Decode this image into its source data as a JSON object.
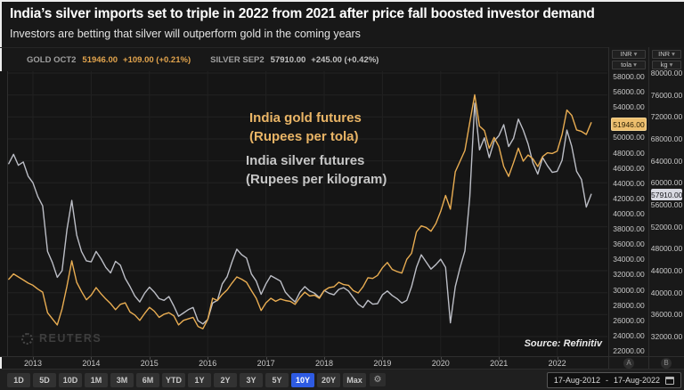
{
  "header": {
    "title": "India’s silver imports set to triple in 2022 from 2021 after price fall boosted investor demand",
    "subtitle": "Investors are betting that silver will outperform gold in the coming years"
  },
  "quotebar": {
    "gold": {
      "symbol": "GOLD OCT2",
      "last": "51946.00",
      "change": "+109.00 (+0.21%)"
    },
    "silver": {
      "symbol": "SILVER SEP2",
      "last": "57910.00",
      "change": "+245.00 (+0.42%)"
    }
  },
  "ui": {
    "caret": "▾"
  },
  "axes": {
    "gold": {
      "currency": "INR",
      "unit": "tola",
      "letter": "A",
      "badge": "51946.00",
      "ticks": [
        "58000.00",
        "56000.00",
        "54000.00",
        "50000.00",
        "48000.00",
        "46000.00",
        "44000.00",
        "42000.00",
        "40000.00",
        "38000.00",
        "36000.00",
        "34000.00",
        "32000.00",
        "30000.00",
        "28000.00",
        "26000.00",
        "24000.00",
        "22000.00"
      ]
    },
    "silver": {
      "currency": "INR",
      "unit": "kg",
      "letter": "B",
      "badge": "57910.00",
      "ticks": [
        "80000.00",
        "76000.00",
        "72000.00",
        "68000.00",
        "64000.00",
        "60000.00",
        "56000.00",
        "52000.00",
        "48000.00",
        "44000.00",
        "40000.00",
        "36000.00",
        "32000.00"
      ]
    }
  },
  "annotations": {
    "gold_line1": "India gold futures",
    "gold_line2": "(Rupees per tola)",
    "silver_line1": "India silver futures",
    "silver_line2": "(Rupees per kilogram)"
  },
  "watermark": "REUTERS",
  "source": "Source: Refinitiv",
  "xaxis": {
    "years": [
      "2013",
      "2014",
      "2015",
      "2016",
      "2017",
      "2018",
      "2019",
      "2020",
      "2021",
      "2022"
    ]
  },
  "toolbar": {
    "ranges": [
      "1D",
      "5D",
      "10D",
      "1M",
      "3M",
      "6M",
      "YTD",
      "1Y",
      "2Y",
      "3Y",
      "5Y",
      "10Y",
      "20Y",
      "Max"
    ],
    "active": "10Y",
    "gear_icon": "⚙",
    "date_from": "17-Aug-2012",
    "date_sep": "-",
    "date_to": "17-Aug-2022"
  },
  "colors": {
    "gold_series": "#e9ad52",
    "silver_series": "#bcbec6",
    "accent_blue": "#2e5be3",
    "gold_badge_bg": "#edbf6e",
    "silver_badge_bg": "#d9dae2",
    "grid": "#232323"
  },
  "chart_data": {
    "type": "line",
    "title": "India gold futures vs India silver futures, 17-Aug-2012 to 17-Aug-2022",
    "x_monthly_start": "2012-08",
    "x_ticks": [
      "2013",
      "2014",
      "2015",
      "2016",
      "2017",
      "2018",
      "2019",
      "2020",
      "2021",
      "2022"
    ],
    "left_axis": {
      "label": "INR per tola",
      "min": 22000,
      "max": 58000,
      "tick_step": 2000,
      "last_price": 51946
    },
    "right_axis": {
      "label": "INR per kilogram",
      "min": 32000,
      "max": 80000,
      "tick_step": 4000,
      "last_price": 57910
    },
    "legend_position": "in-plot text labels",
    "grid": true,
    "series": [
      {
        "name": "India silver futures (Rupees per kilogram)",
        "axis": "right",
        "color": "#bcbec6",
        "values": [
          63500,
          65200,
          63200,
          63800,
          61200,
          60000,
          57500,
          55800,
          47500,
          45500,
          42800,
          44000,
          51500,
          56800,
          50500,
          47500,
          45800,
          45600,
          47500,
          46200,
          44600,
          43600,
          45700,
          45000,
          42600,
          41100,
          39400,
          38300,
          39900,
          41000,
          40100,
          38900,
          38600,
          39300,
          37600,
          35700,
          36300,
          36900,
          37300,
          34900,
          34300,
          35100,
          38100,
          38600,
          41600,
          42900,
          45600,
          47900,
          46900,
          46300,
          43400,
          42100,
          39700,
          41600,
          43100,
          42600,
          42100,
          40100,
          39100,
          38300,
          40100,
          41100,
          40300,
          39900,
          39100,
          40400,
          39900,
          39600,
          40600,
          40900,
          40300,
          39100,
          37900,
          37300,
          38600,
          37900,
          38000,
          39600,
          40300,
          39500,
          38900,
          38100,
          38600,
          41100,
          44600,
          46900,
          45600,
          44300,
          45100,
          46100,
          44600,
          34500,
          41100,
          44600,
          47600,
          57500,
          74500,
          66000,
          68200,
          64600,
          67600,
          68600,
          70600,
          66600,
          68100,
          71600,
          69600,
          67100,
          63600,
          61600,
          64600,
          63100,
          61900,
          62100,
          64100,
          69600,
          66600,
          62100,
          60600,
          55600,
          57910
        ]
      },
      {
        "name": "India gold futures (Rupees per tola)",
        "axis": "left",
        "color": "#e9ad52",
        "values": [
          31400,
          32100,
          31700,
          31300,
          30900,
          30600,
          30100,
          29700,
          27000,
          26200,
          25400,
          27500,
          30500,
          33800,
          31000,
          29800,
          28700,
          29300,
          30300,
          29500,
          28800,
          28200,
          27400,
          28100,
          28300,
          27100,
          26700,
          26000,
          26900,
          27700,
          27200,
          26400,
          26800,
          27000,
          26600,
          25400,
          26000,
          26200,
          26400,
          25200,
          24900,
          26100,
          28900,
          28600,
          29400,
          30000,
          30900,
          31700,
          31400,
          31000,
          29900,
          28900,
          27300,
          28300,
          28900,
          28500,
          28800,
          28600,
          28500,
          28100,
          29000,
          29700,
          29200,
          29300,
          28900,
          29900,
          30300,
          30400,
          31000,
          30700,
          30600,
          29900,
          29600,
          30400,
          31600,
          31500,
          31900,
          32900,
          33600,
          32700,
          32400,
          32200,
          34000,
          34800,
          37600,
          38400,
          38200,
          37700,
          38700,
          40300,
          42400,
          40600,
          45500,
          46900,
          48300,
          52000,
          55600,
          51500,
          50900,
          48600,
          50000,
          48800,
          46200,
          44900,
          46700,
          48600,
          46900,
          47700,
          47200,
          46200,
          47500,
          48000,
          47900,
          48200,
          50400,
          53600,
          52900,
          51000,
          50800,
          50400,
          51946
        ]
      }
    ]
  }
}
